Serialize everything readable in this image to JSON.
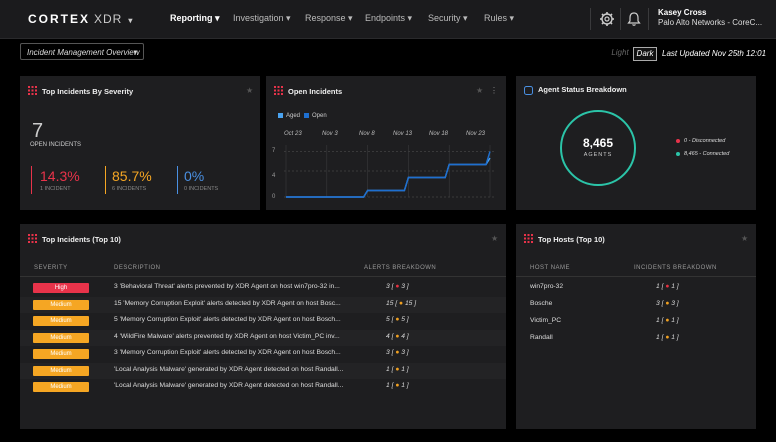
{
  "nav": {
    "logo_main": "CORTEX",
    "logo_xdr": "XDR",
    "logo_caret": "▾",
    "menus": [
      "Reporting ▾",
      "Investigation ▾",
      "Response ▾",
      "Endpoints ▾",
      "Security ▾",
      "Rules ▾"
    ],
    "user_name": "Kasey Cross",
    "user_org": "Palo Alto Networks - CoreC..."
  },
  "subheader": {
    "dashboard_select": "Incident Management Overview",
    "theme_light": "Light",
    "theme_dark": "Dark",
    "last_updated": "Last Updated Nov 25th 12:01"
  },
  "severity_widget": {
    "title": "Top Incidents By Severity",
    "open_count": "7",
    "open_label": "OPEN INCIDENTS",
    "stats": [
      {
        "value": "14.3%",
        "label": "1 INCIDENT",
        "color": "#e8334a"
      },
      {
        "value": "85.7%",
        "label": "6 INCIDENTS",
        "color": "#f5a623"
      },
      {
        "value": "0%",
        "label": "0 INCIDENTS",
        "color": "#4a90e2"
      }
    ]
  },
  "open_incidents_widget": {
    "title": "Open Incidents",
    "legend": [
      {
        "name": "Aged",
        "color": "#4aa3f0"
      },
      {
        "name": "Open",
        "color": "#1e6fd0"
      }
    ],
    "x_labels": [
      "Oct 23",
      "Nov 3",
      "Nov 8",
      "Nov 13",
      "Nov 18",
      "Nov 23"
    ],
    "y_labels": [
      "7",
      "4",
      "0"
    ]
  },
  "chart_data": {
    "type": "line",
    "title": "Open Incidents",
    "x": [
      "Oct 23",
      "Nov 3",
      "Nov 8",
      "Nov 13",
      "Nov 18",
      "Nov 23"
    ],
    "ylim": [
      0,
      8
    ],
    "series": [
      {
        "name": "Aged",
        "values": [
          0,
          0,
          1,
          3,
          5,
          6
        ]
      },
      {
        "name": "Open",
        "values": [
          0,
          0,
          1,
          3,
          5,
          7
        ]
      }
    ]
  },
  "agent_widget": {
    "title": "Agent Status Breakdown",
    "total": "8,465",
    "total_label": "AGENTS",
    "legend": [
      {
        "text": "0 - Disconnected",
        "color": "#e8334a"
      },
      {
        "text": "8,465 - Connected",
        "color": "#2bc4a8"
      }
    ]
  },
  "top_incidents": {
    "title": "Top Incidents (Top 10)",
    "headers": [
      "SEVERITY",
      "DESCRIPTION",
      "ALERTS BREAKDOWN"
    ],
    "rows": [
      {
        "severity": "High",
        "description": "3 'Behavioral Threat' alerts prevented by XDR Agent on host win7pro-32 in...",
        "count": "3",
        "inner": "3"
      },
      {
        "severity": "Medium",
        "description": "15 'Memory Corruption Exploit' alerts detected by XDR Agent on host Bosc...",
        "count": "15",
        "inner": "15"
      },
      {
        "severity": "Medium",
        "description": "5 'Memory Corruption Exploit' alerts detected by XDR Agent on host Bosch...",
        "count": "5",
        "inner": "5"
      },
      {
        "severity": "Medium",
        "description": "4 'WildFire Malware' alerts prevented by XDR Agent on host Victim_PC inv...",
        "count": "4",
        "inner": "4"
      },
      {
        "severity": "Medium",
        "description": "3 'Memory Corruption Exploit' alerts detected by XDR Agent on host Bosch...",
        "count": "3",
        "inner": "3"
      },
      {
        "severity": "Medium",
        "description": "'Local Analysis Malware' generated by XDR Agent detected on host Randall...",
        "count": "1",
        "inner": "1"
      },
      {
        "severity": "Medium",
        "description": "'Local Analysis Malware' generated by XDR Agent detected on host Randall...",
        "count": "1",
        "inner": "1"
      }
    ]
  },
  "top_hosts": {
    "title": "Top Hosts (Top 10)",
    "headers": [
      "HOST NAME",
      "INCIDENTS BREAKDOWN"
    ],
    "rows": [
      {
        "host": "win7pro-32",
        "count": "1",
        "inner": "1",
        "dot": "red"
      },
      {
        "host": "Bosche",
        "count": "3",
        "inner": "3",
        "dot": "orange"
      },
      {
        "host": "Victim_PC",
        "count": "1",
        "inner": "1",
        "dot": "orange"
      },
      {
        "host": "Randall",
        "count": "1",
        "inner": "1",
        "dot": "orange"
      }
    ]
  }
}
